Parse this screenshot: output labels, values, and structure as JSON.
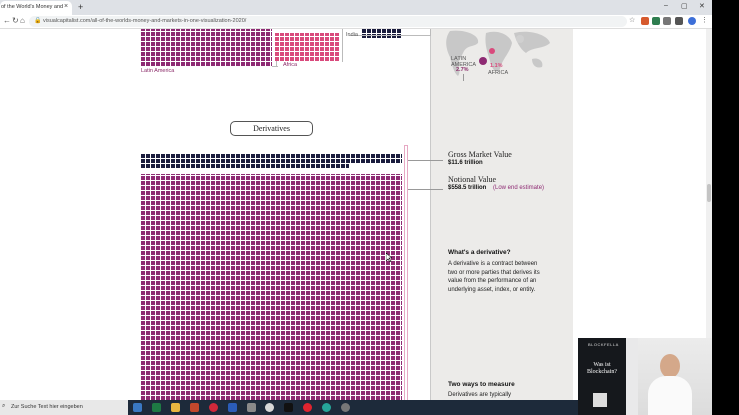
{
  "browser": {
    "tab_title": "of the World's Money and Ma",
    "tab_close": "×",
    "new_tab": "+",
    "url": "visualcapitalist.com/all-of-the-worlds-money-and-markets-in-one-visualization-2020/",
    "win_min": "–",
    "win_max": "▢",
    "win_close": "✕"
  },
  "top_section": {
    "india_label": "India",
    "latin_america_label": "Latin America",
    "africa_label": "Africa"
  },
  "map": {
    "latin_america_name": "LATIN AMERICA",
    "latin_america_value": "2.7%",
    "africa_value": "1.1%",
    "africa_name": "AFRICA"
  },
  "derivatives": {
    "heading": "Derivatives",
    "gross_title": "Gross Market Value",
    "gross_value": "$11.6 trillion",
    "notional_title": "Notional Value",
    "notional_value": "$558.5 trillion",
    "notional_note": "(Low end estimate)"
  },
  "sidebar": {
    "what_title": "What's a derivative?",
    "what_body": "A derivative is a contract between two or more parties that derives its value from the performance of an underlying asset, index, or entity.",
    "ways_title": "Two ways to measure",
    "ways_body": "Derivatives are typically"
  },
  "taskbar": {
    "search_placeholder": "Zur Suche Text hier eingeben"
  },
  "webcam": {
    "brand": "BLOCKFELLA",
    "headline": "Was ist Blockchain?"
  },
  "colors": {
    "magenta": "#8e2a73",
    "pink": "#d94a7c",
    "navy": "#1a1c3d"
  }
}
